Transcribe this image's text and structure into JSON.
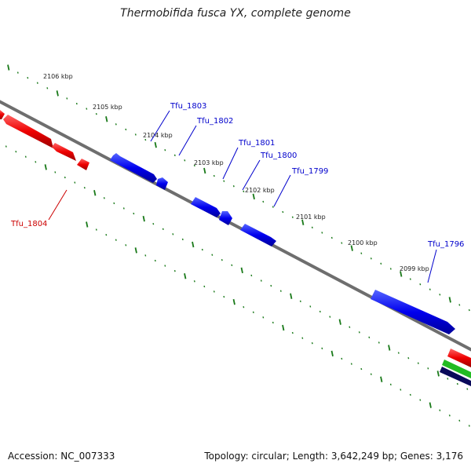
{
  "title": "Thermobifida fusca YX, complete genome",
  "footer": {
    "accession": "Accession: NC_007333",
    "summary": "Topology: circular; Length: 3,642,249 bp; Genes: 3,176"
  },
  "colors": {
    "background": "#ffffff",
    "backbone": "#808080",
    "tick": "#1a7a1a",
    "forward_gene": "#0000ee",
    "reverse_gene": "#ee0000",
    "forward_label": "#0000cc",
    "reverse_label": "#cc0000",
    "green_feature": "#22bb22",
    "navy_feature": "#0a0a5a"
  },
  "kbp_labels": [
    "2106 kbp",
    "2105 kbp",
    "2104 kbp",
    "2103 kbp",
    "2102 kbp",
    "2101 kbp",
    "2100 kbp",
    "2099 kbp"
  ],
  "genes": [
    {
      "name": "Tfu_1803",
      "strand": "forward"
    },
    {
      "name": "Tfu_1802",
      "strand": "forward"
    },
    {
      "name": "Tfu_1801",
      "strand": "forward"
    },
    {
      "name": "Tfu_1800",
      "strand": "forward"
    },
    {
      "name": "Tfu_1799",
      "strand": "forward"
    },
    {
      "name": "Tfu_1796",
      "strand": "forward"
    },
    {
      "name": "Tfu_1804",
      "strand": "reverse"
    }
  ]
}
